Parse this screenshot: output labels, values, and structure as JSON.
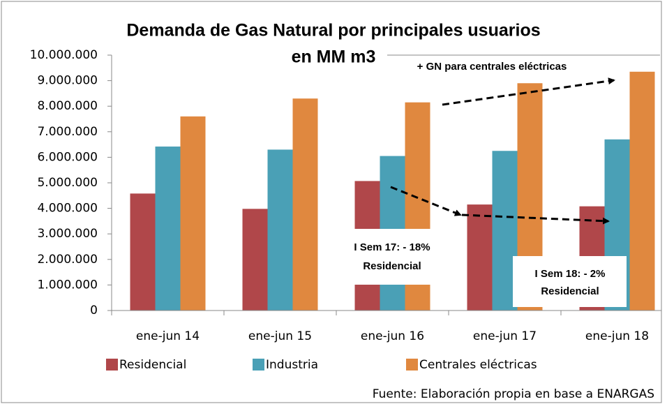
{
  "chart_data": {
    "type": "bar",
    "title": [
      "Demanda de Gas Natural por principales usuarios",
      "en MM m3"
    ],
    "categories": [
      "ene-jun 14",
      "ene-jun 15",
      "ene-jun 16",
      "ene-jun 17",
      "ene-jun 18"
    ],
    "series": [
      {
        "name": "Residencial",
        "color": "#b0474a",
        "values": [
          4580000,
          3980000,
          5070000,
          4150000,
          4080000
        ]
      },
      {
        "name": "Industria",
        "color": "#4aa0b6",
        "values": [
          6420000,
          6300000,
          6050000,
          6250000,
          6700000
        ]
      },
      {
        "name": "Centrales eléctricas",
        "color": "#e0883f",
        "values": [
          7600000,
          8300000,
          8150000,
          8900000,
          9350000
        ]
      }
    ],
    "ylim": [
      0,
      10000000
    ],
    "yticks": [
      0,
      {
        "value": 1000000,
        "label": "1.000.000"
      },
      {
        "value": 2000000,
        "label": "2.000.000"
      },
      {
        "value": 3000000,
        "label": "3.000.000"
      },
      {
        "value": 4000000,
        "label": "4.000.000"
      },
      {
        "value": 5000000,
        "label": "5.000.000"
      },
      {
        "value": 6000000,
        "label": "6.000.000"
      },
      {
        "value": 7000000,
        "label": "7.000.000"
      },
      {
        "value": 8000000,
        "label": "8.000.000"
      },
      {
        "value": 9000000,
        "label": "9.000.000"
      },
      {
        "value": 10000000,
        "label": "10.000.000"
      }
    ],
    "grid": false,
    "legend": "bottom",
    "annotations": [
      "+ GN para centrales eléctricas",
      "I Sem 17: - 18%",
      "Residencial",
      "I Sem 18: - 2%",
      "Residencial"
    ],
    "source": "Fuente: Elaboración propia en base a ENARGAS"
  }
}
